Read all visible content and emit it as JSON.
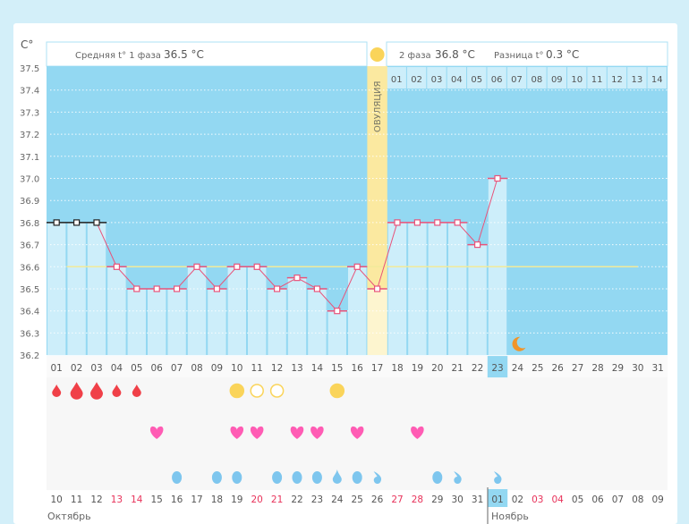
{
  "y_unit": "C°",
  "phase1": {
    "label": "Средняя t° 1 фаза",
    "value": "36.5 °C"
  },
  "phase2": {
    "label": "2 фаза",
    "value": "36.8 °C"
  },
  "difference": {
    "label": "Разница t°",
    "value": "0.3 °C"
  },
  "ovulation_label": "ОВУЛЯЦИЯ",
  "phase2_days": [
    "01",
    "02",
    "03",
    "04",
    "05",
    "06",
    "07",
    "08",
    "09",
    "10",
    "11",
    "12",
    "13",
    "14"
  ],
  "colors": {
    "background": "#93d8f2",
    "bar": "#cdeefa",
    "line": "#e8537a",
    "average_line": "#f2ea9a",
    "ovulation": "#fbe9a0",
    "drop": "#f04048",
    "heart": "#ff5cb4",
    "discharge": "#7ec6ee",
    "sun": "#fad45a",
    "moon": "#f0952a",
    "weekend": "#e8325a"
  },
  "chart_data": {
    "type": "line",
    "y_ticks": [
      "37.5",
      "37.4",
      "37.3",
      "37.2",
      "37.1",
      "37.0",
      "36.9",
      "36.8",
      "36.7",
      "36.6",
      "36.5",
      "36.4",
      "36.3",
      "36.2"
    ],
    "ylim": [
      36.2,
      37.5
    ],
    "grid": true,
    "cycle_days": [
      "01",
      "02",
      "03",
      "04",
      "05",
      "06",
      "07",
      "08",
      "09",
      "10",
      "11",
      "12",
      "13",
      "14",
      "15",
      "16",
      "17",
      "18",
      "19",
      "20",
      "21",
      "22",
      "23",
      "24",
      "25",
      "26",
      "27",
      "28",
      "29",
      "30",
      "31"
    ],
    "temperatures": [
      36.8,
      36.8,
      36.8,
      36.6,
      36.5,
      36.5,
      36.5,
      36.6,
      36.5,
      36.6,
      36.6,
      36.5,
      36.55,
      36.5,
      36.4,
      36.6,
      36.5,
      36.8,
      36.8,
      36.8,
      36.8,
      36.7,
      37.0
    ],
    "excluded_days": [
      1,
      2,
      3
    ],
    "average_line": 36.6,
    "ovulation_day": 17,
    "current_day": 23,
    "moon_day": 24
  },
  "symbols": {
    "bleeding": [
      {
        "day": 1,
        "size": "small"
      },
      {
        "day": 2,
        "size": "large"
      },
      {
        "day": 3,
        "size": "large"
      },
      {
        "day": 4,
        "size": "small"
      },
      {
        "day": 5,
        "size": "small"
      }
    ],
    "sun": [
      {
        "day": 10,
        "type": "filled"
      },
      {
        "day": 11,
        "type": "ring"
      },
      {
        "day": 12,
        "type": "ring"
      },
      {
        "day": 15,
        "type": "filled"
      }
    ],
    "hearts": [
      6,
      10,
      11,
      13,
      14,
      16,
      19
    ],
    "discharge": [
      {
        "day": 7,
        "type": "oval"
      },
      {
        "day": 9,
        "type": "oval"
      },
      {
        "day": 10,
        "type": "oval"
      },
      {
        "day": 12,
        "type": "oval"
      },
      {
        "day": 13,
        "type": "oval"
      },
      {
        "day": 14,
        "type": "oval"
      },
      {
        "day": 15,
        "type": "drop"
      },
      {
        "day": 16,
        "type": "oval"
      },
      {
        "day": 17,
        "type": "comma"
      },
      {
        "day": 20,
        "type": "oval"
      },
      {
        "day": 21,
        "type": "comma"
      },
      {
        "day": 23,
        "type": "comma"
      }
    ]
  },
  "dates": [
    {
      "d": "10"
    },
    {
      "d": "11"
    },
    {
      "d": "12"
    },
    {
      "d": "13",
      "weekend": true
    },
    {
      "d": "14",
      "weekend": true
    },
    {
      "d": "15"
    },
    {
      "d": "16"
    },
    {
      "d": "17"
    },
    {
      "d": "18"
    },
    {
      "d": "19"
    },
    {
      "d": "20",
      "weekend": true
    },
    {
      "d": "21",
      "weekend": true
    },
    {
      "d": "22"
    },
    {
      "d": "23"
    },
    {
      "d": "24"
    },
    {
      "d": "25"
    },
    {
      "d": "26"
    },
    {
      "d": "27",
      "weekend": true
    },
    {
      "d": "28",
      "weekend": true
    },
    {
      "d": "29"
    },
    {
      "d": "30"
    },
    {
      "d": "31"
    },
    {
      "d": "01",
      "current": true
    },
    {
      "d": "02"
    },
    {
      "d": "03",
      "weekend": true
    },
    {
      "d": "04",
      "weekend": true
    },
    {
      "d": "05"
    },
    {
      "d": "06"
    },
    {
      "d": "07"
    },
    {
      "d": "08"
    },
    {
      "d": "09"
    }
  ],
  "months": {
    "october": "Октябрь",
    "november": "Ноябрь"
  }
}
